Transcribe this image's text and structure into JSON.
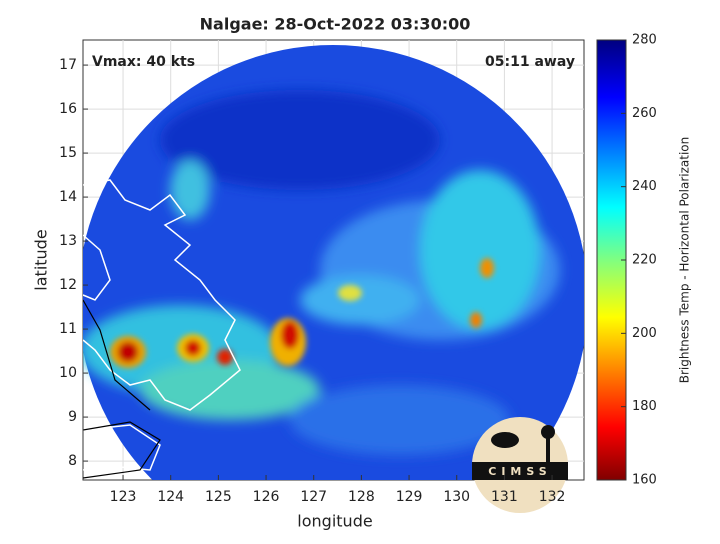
{
  "chart_data": {
    "type": "map",
    "title": "Nalgae: 28-Oct-2022 03:30:00",
    "annotations": [
      "Vmax: 40 kts",
      "05:11 away"
    ],
    "x_label": "longitude",
    "y_label": "latitude",
    "xlim": [
      122.16,
      132.67
    ],
    "xticks": [
      123,
      124,
      125,
      126,
      127,
      128,
      129,
      130,
      131,
      132
    ],
    "ylim": [
      7.57,
      17.57
    ],
    "yticks": [
      8,
      9,
      10,
      11,
      12,
      13,
      14,
      15,
      16,
      17
    ],
    "grid": true,
    "colorbar": {
      "label": "Brightness Temp - Horizontal Polarization",
      "lim": [
        160,
        280
      ],
      "ticks": [
        160,
        180,
        200,
        220,
        240,
        260,
        280
      ]
    },
    "logo": "CIMSS"
  }
}
